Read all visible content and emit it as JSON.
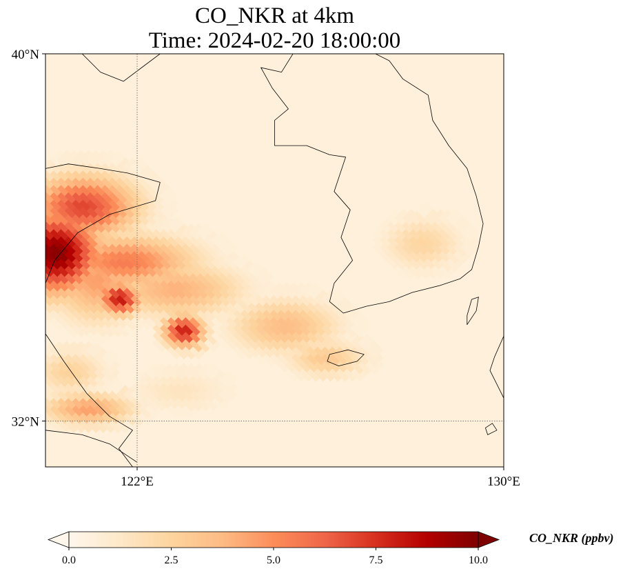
{
  "figure": {
    "title_line1": "CO_NKR at 4km",
    "title_line2": "Time: 2024-02-20 18:00:00"
  },
  "map": {
    "extent": {
      "lon_min": 120,
      "lon_max": 130,
      "lat_min": 31,
      "lat_max": 40
    },
    "gridlines": {
      "lons": [
        122
      ],
      "lats": [
        32
      ],
      "style": "dotted",
      "color": "#777777"
    },
    "lat_ticks": [
      {
        "value": 40,
        "label": "40°N"
      },
      {
        "value": 32,
        "label": "32°N"
      }
    ],
    "lon_ticks": [
      {
        "value": 122,
        "label": "122°E"
      },
      {
        "value": 130,
        "label": "130°E"
      }
    ],
    "coastline_color": "#000000"
  },
  "field": {
    "variable": "CO_NKR",
    "units": "ppbv",
    "vmin": 0,
    "vmax": 10,
    "colormap": "OrRd",
    "colormap_stops": [
      "#fff7ec",
      "#fee8c8",
      "#fdd49e",
      "#fdbb84",
      "#fc8d59",
      "#ef6548",
      "#d7301f",
      "#b30000",
      "#7f0000"
    ],
    "plumes": [
      {
        "lon": 120.3,
        "lat": 35.7,
        "value": 9.8,
        "spread_lon": 1.0,
        "spread_lat": 0.9
      },
      {
        "lon": 120.9,
        "lat": 36.7,
        "value": 7.0,
        "spread_lon": 1.2,
        "spread_lat": 0.7
      },
      {
        "lon": 121.8,
        "lat": 35.5,
        "value": 5.5,
        "spread_lon": 1.6,
        "spread_lat": 0.6
      },
      {
        "lon": 121.7,
        "lat": 34.7,
        "value": 8.2,
        "spread_lon": 0.45,
        "spread_lat": 0.35
      },
      {
        "lon": 123.1,
        "lat": 34.0,
        "value": 8.0,
        "spread_lon": 0.45,
        "spread_lat": 0.35
      },
      {
        "lon": 122.9,
        "lat": 34.9,
        "value": 4.0,
        "spread_lon": 1.5,
        "spread_lat": 0.6
      },
      {
        "lon": 121.2,
        "lat": 35.1,
        "value": 4.5,
        "spread_lon": 1.0,
        "spread_lat": 0.9
      },
      {
        "lon": 125.3,
        "lat": 34.1,
        "value": 3.6,
        "spread_lon": 1.2,
        "spread_lat": 0.6
      },
      {
        "lon": 126.2,
        "lat": 33.4,
        "value": 3.0,
        "spread_lon": 0.9,
        "spread_lat": 0.4
      },
      {
        "lon": 128.3,
        "lat": 35.9,
        "value": 2.4,
        "spread_lon": 0.9,
        "spread_lat": 0.6
      },
      {
        "lon": 120.6,
        "lat": 33.1,
        "value": 2.6,
        "spread_lon": 0.8,
        "spread_lat": 0.5
      },
      {
        "lon": 121.0,
        "lat": 32.3,
        "value": 4.5,
        "spread_lon": 1.0,
        "spread_lat": 0.35
      },
      {
        "lon": 123.0,
        "lat": 32.7,
        "value": 1.5,
        "spread_lon": 1.2,
        "spread_lat": 0.5
      }
    ],
    "background_value": 0.6
  },
  "colorbar": {
    "label": "CO_NKR (ppbv)",
    "ticks": [
      {
        "value": 0,
        "label": "0.0"
      },
      {
        "value": 2.5,
        "label": "2.5"
      },
      {
        "value": 5,
        "label": "5.0"
      },
      {
        "value": 7.5,
        "label": "7.5"
      },
      {
        "value": 10,
        "label": "10.0"
      }
    ],
    "extend": "both"
  },
  "coastlines": [
    {
      "name": "korea-mainland",
      "closed": true,
      "points": [
        [
          126.55,
          37.75
        ],
        [
          126.3,
          37.0
        ],
        [
          126.65,
          36.6
        ],
        [
          126.45,
          36.0
        ],
        [
          126.7,
          35.5
        ],
        [
          126.3,
          35.0
        ],
        [
          126.2,
          34.6
        ],
        [
          126.5,
          34.35
        ],
        [
          127.0,
          34.5
        ],
        [
          127.5,
          34.6
        ],
        [
          128.0,
          34.8
        ],
        [
          128.6,
          34.95
        ],
        [
          129.05,
          35.1
        ],
        [
          129.3,
          35.3
        ],
        [
          129.45,
          35.8
        ],
        [
          129.55,
          36.3
        ],
        [
          129.4,
          36.9
        ],
        [
          129.2,
          37.5
        ],
        [
          128.8,
          38.0
        ],
        [
          128.45,
          38.55
        ],
        [
          128.35,
          39.1
        ],
        [
          127.8,
          39.45
        ],
        [
          127.5,
          39.85
        ],
        [
          127.2,
          40.0
        ],
        [
          125.4,
          40.0
        ],
        [
          125.15,
          39.6
        ],
        [
          124.7,
          39.7
        ],
        [
          124.95,
          39.25
        ],
        [
          125.3,
          38.8
        ],
        [
          125.0,
          38.55
        ],
        [
          125.0,
          38.0
        ],
        [
          125.7,
          38.0
        ],
        [
          126.2,
          37.8
        ]
      ]
    },
    {
      "name": "liaodong-coast",
      "closed": false,
      "points": [
        [
          120.8,
          40.0
        ],
        [
          121.2,
          39.6
        ],
        [
          121.7,
          39.4
        ],
        [
          122.1,
          39.7
        ],
        [
          122.5,
          40.0
        ]
      ]
    },
    {
      "name": "shandong-coast",
      "closed": false,
      "points": [
        [
          120.0,
          37.5
        ],
        [
          120.5,
          37.6
        ],
        [
          121.2,
          37.5
        ],
        [
          121.8,
          37.4
        ],
        [
          122.5,
          37.2
        ],
        [
          122.4,
          36.8
        ],
        [
          121.4,
          36.5
        ],
        [
          120.7,
          36.1
        ],
        [
          120.2,
          35.5
        ],
        [
          120.0,
          35.0
        ]
      ]
    },
    {
      "name": "jiangsu-coast",
      "closed": false,
      "points": [
        [
          120.0,
          33.9
        ],
        [
          120.4,
          33.3
        ],
        [
          120.9,
          32.6
        ],
        [
          121.4,
          32.1
        ],
        [
          121.9,
          31.8
        ],
        [
          121.6,
          31.4
        ],
        [
          121.9,
          31.0
        ]
      ]
    },
    {
      "name": "yangtze-south-bank",
      "closed": false,
      "points": [
        [
          120.0,
          31.8
        ],
        [
          120.8,
          31.7
        ],
        [
          121.4,
          31.5
        ],
        [
          122.0,
          31.1
        ]
      ]
    },
    {
      "name": "jeju",
      "closed": true,
      "points": [
        [
          126.15,
          33.3
        ],
        [
          126.4,
          33.2
        ],
        [
          126.8,
          33.3
        ],
        [
          126.95,
          33.45
        ],
        [
          126.6,
          33.55
        ],
        [
          126.2,
          33.45
        ]
      ]
    },
    {
      "name": "tsushima",
      "closed": true,
      "points": [
        [
          129.2,
          34.1
        ],
        [
          129.4,
          34.4
        ],
        [
          129.45,
          34.7
        ],
        [
          129.3,
          34.65
        ],
        [
          129.2,
          34.3
        ]
      ]
    },
    {
      "name": "kyushu-coast",
      "closed": false,
      "points": [
        [
          130.0,
          33.85
        ],
        [
          129.8,
          33.4
        ],
        [
          129.7,
          33.1
        ],
        [
          129.9,
          32.7
        ],
        [
          130.0,
          32.5
        ]
      ]
    },
    {
      "name": "kyushu-islet",
      "closed": true,
      "points": [
        [
          129.65,
          31.7
        ],
        [
          129.85,
          31.8
        ],
        [
          129.75,
          31.95
        ],
        [
          129.6,
          31.85
        ]
      ]
    }
  ]
}
